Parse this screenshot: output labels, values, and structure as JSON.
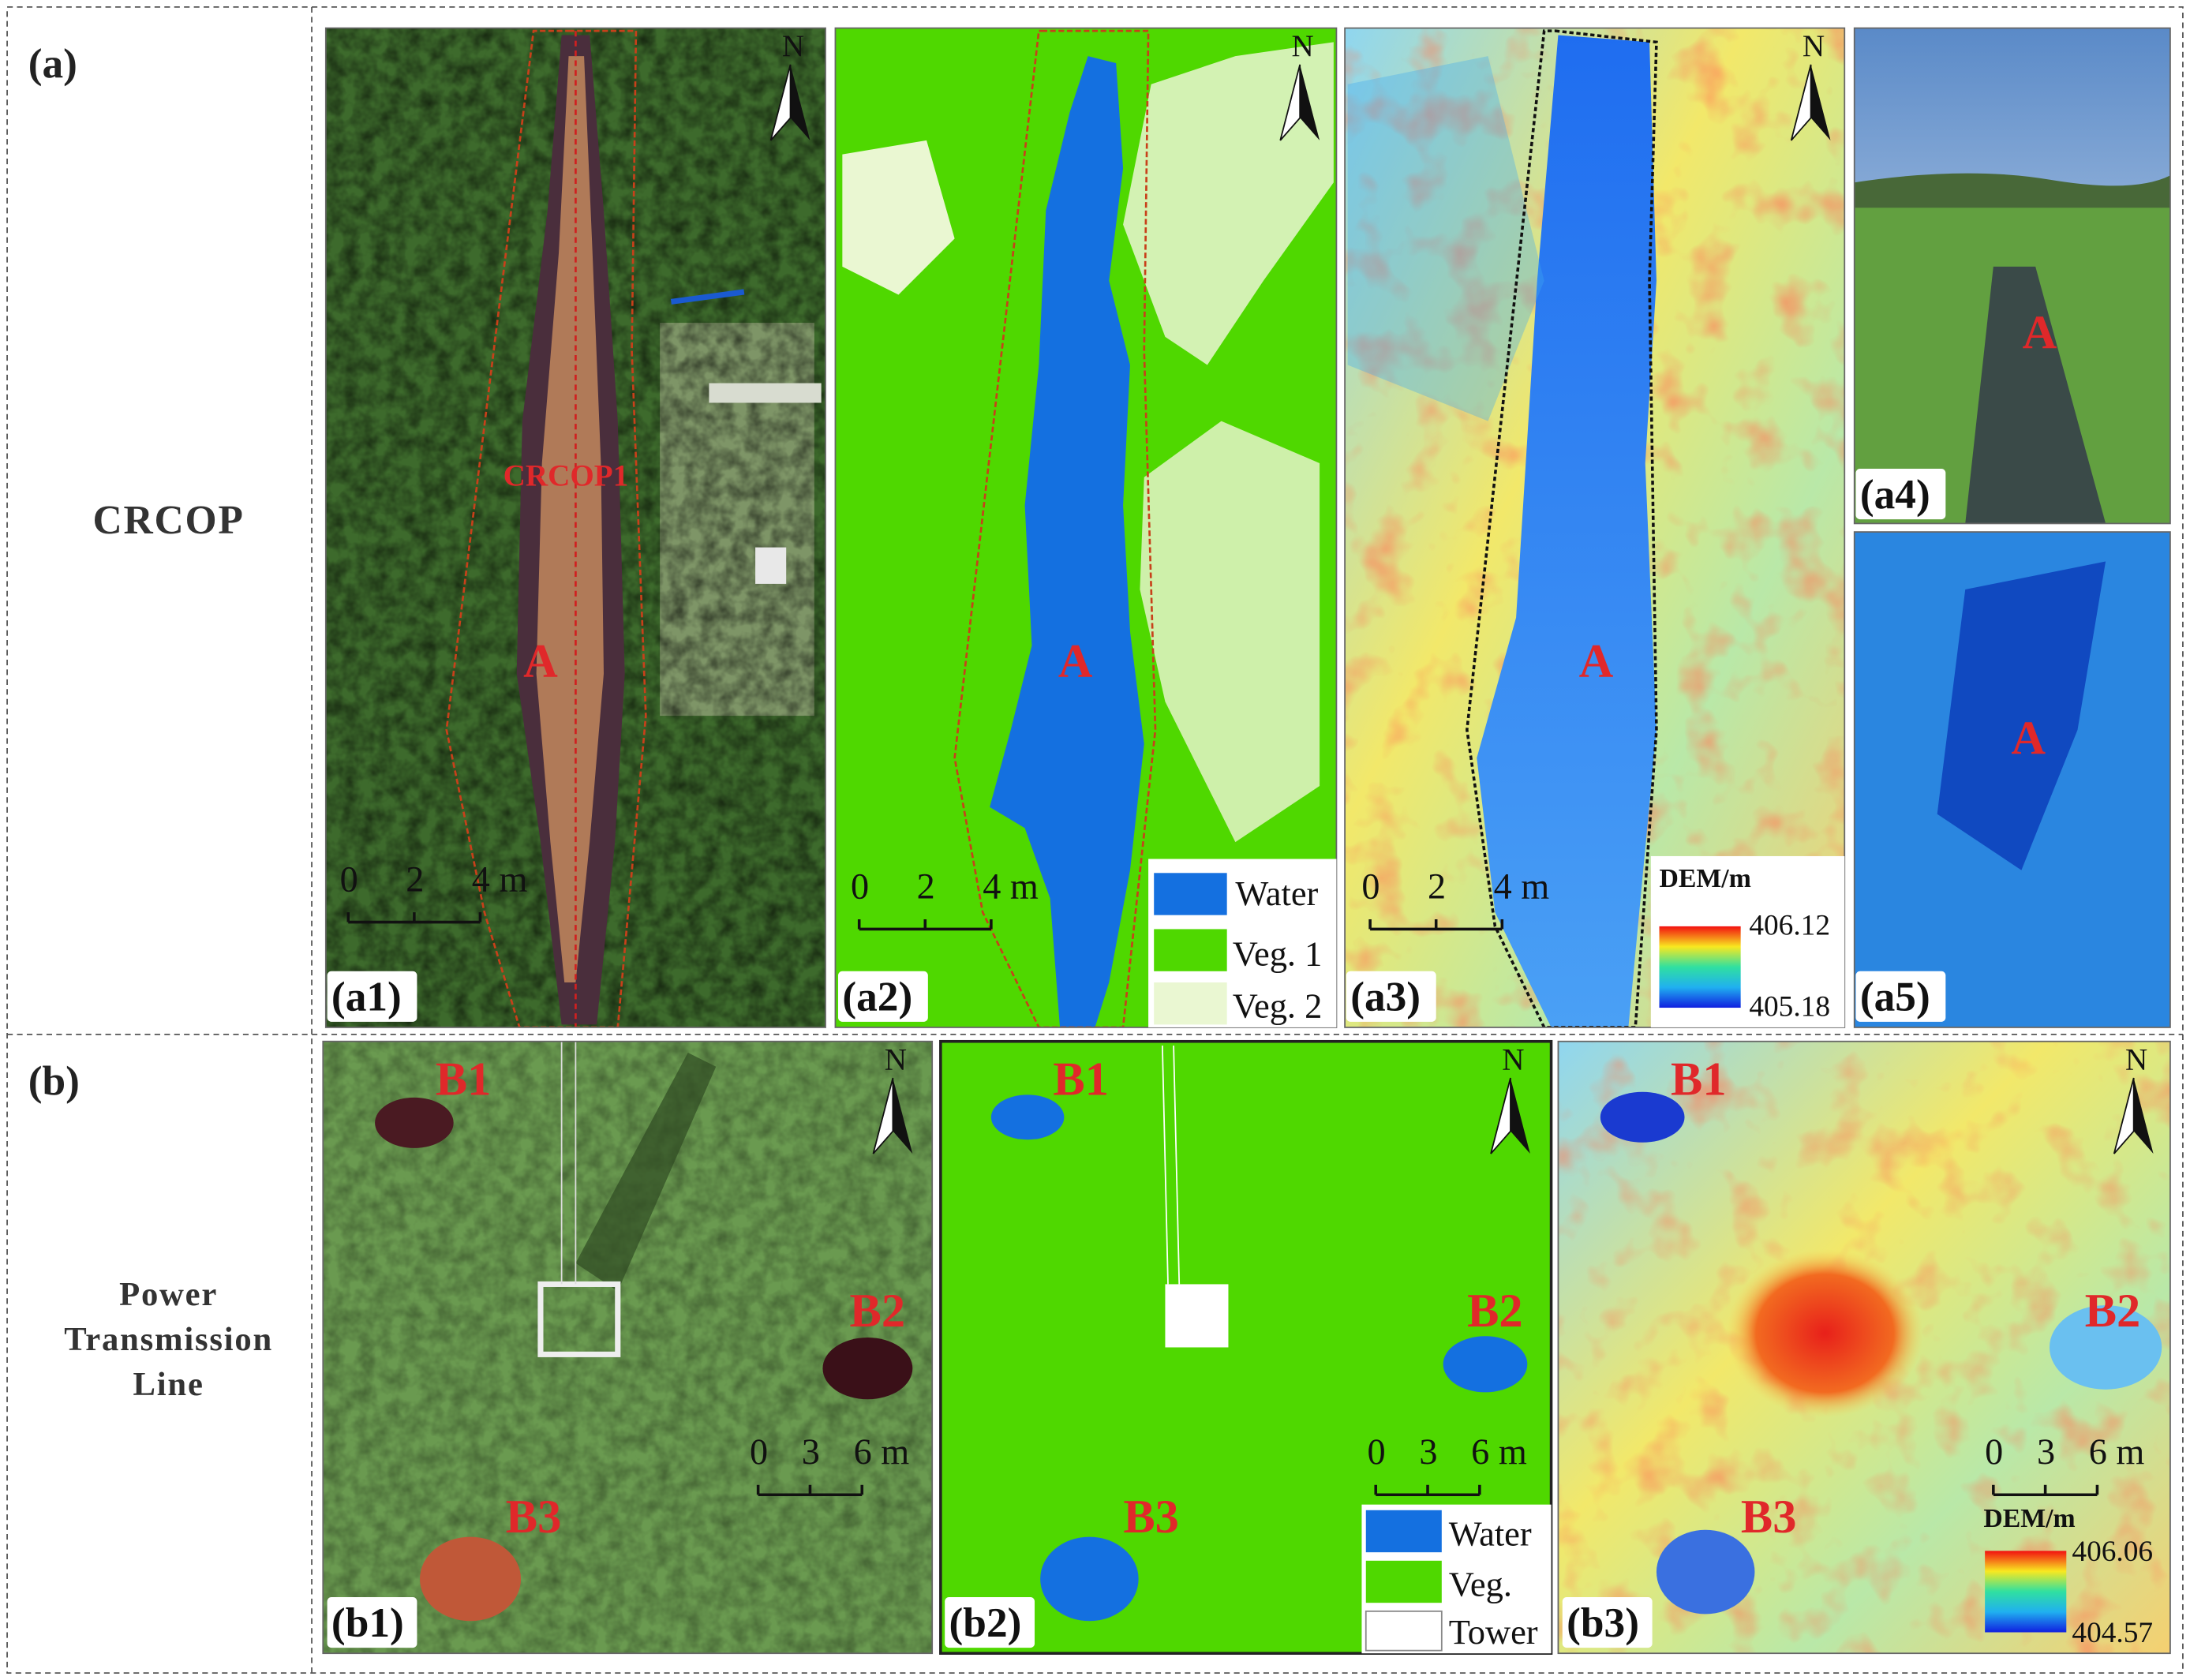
{
  "row_a": {
    "label": "(a)",
    "name": "CRCOP",
    "a1": {
      "label": "(a1)",
      "site": "A",
      "transect": "CRCOP1",
      "north": "N",
      "scale": [
        "0",
        "2",
        "4 m"
      ]
    },
    "a2": {
      "label": "(a2)",
      "site": "A",
      "north": "N",
      "scale": [
        "0",
        "2",
        "4 m"
      ],
      "legend": [
        "Water",
        "Veg. 1",
        "Veg. 2"
      ]
    },
    "a3": {
      "label": "(a3)",
      "site": "A",
      "north": "N",
      "scale": [
        "0",
        "2",
        "4 m"
      ],
      "colorbar": {
        "title": "DEM/m",
        "max": "406.12",
        "min": "405.18"
      }
    },
    "a4": {
      "label": "(a4)",
      "site": "A"
    },
    "a5": {
      "label": "(a5)",
      "site": "A"
    }
  },
  "row_b": {
    "label": "(b)",
    "name": [
      "Power",
      "Transmission",
      "Line"
    ],
    "b1": {
      "label": "(b1)",
      "sites": [
        "B1",
        "B2",
        "B3"
      ],
      "north": "N",
      "scale": [
        "0",
        "3",
        "6 m"
      ]
    },
    "b2": {
      "label": "(b2)",
      "sites": [
        "B1",
        "B2",
        "B3"
      ],
      "north": "N",
      "scale": [
        "0",
        "3",
        "6 m"
      ],
      "legend": [
        "Water",
        "Veg.",
        "Tower"
      ]
    },
    "b3": {
      "label": "(b3)",
      "sites": [
        "B1",
        "B2",
        "B3"
      ],
      "north": "N",
      "scale": [
        "0",
        "3",
        "6 m"
      ],
      "colorbar": {
        "title": "DEM/m",
        "max": "406.06",
        "min": "404.57"
      }
    }
  }
}
